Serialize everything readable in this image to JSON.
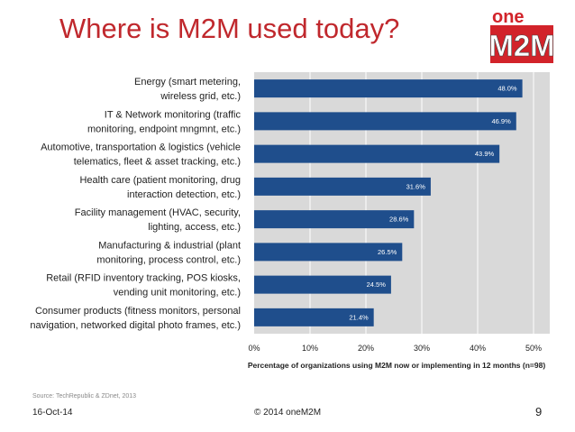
{
  "slide": {
    "title": "Where is M2M used today?",
    "logo_text_top": "one",
    "logo_text_main": "M2M",
    "source": "Source: TechRepublic & ZDnet, 2013",
    "date": "16-Oct-14",
    "copyright": "© 2014 oneM2M",
    "page_number": "9"
  },
  "colors": {
    "title": "#c0282d",
    "bar": "#1f4e8c",
    "plot_bg": "#d9d9d9",
    "logo_red": "#d2232a"
  },
  "chart_data": {
    "type": "bar",
    "orientation": "horizontal",
    "categories": [
      [
        "Energy (smart metering,",
        "wireless grid, etc.)"
      ],
      [
        "IT & Network monitoring (traffic",
        "monitoring, endpoint mngmnt, etc.)"
      ],
      [
        "Automotive, transportation & logistics (vehicle",
        "telematics, fleet & asset tracking, etc.)"
      ],
      [
        "Health care (patient monitoring, drug",
        "interaction detection, etc.)"
      ],
      [
        "Facility management (HVAC, security,",
        "lighting, access, etc.)"
      ],
      [
        "Manufacturing & industrial (plant",
        "monitoring, process control, etc.)"
      ],
      [
        "Retail (RFID inventory tracking, POS kiosks,",
        "vending unit monitoring, etc.)"
      ],
      [
        "Consumer products (fitness monitors, personal",
        "navigation, networked digital photo frames, etc.)"
      ]
    ],
    "values": [
      48.0,
      46.9,
      43.9,
      31.6,
      28.6,
      26.5,
      24.5,
      21.4
    ],
    "data_labels": [
      "48.0%",
      "46.9%",
      "43.9%",
      "31.6%",
      "28.6%",
      "26.5%",
      "24.5%",
      "21.4%"
    ],
    "xlabel": "Percentage of organizations using M2M now or implementing in 12 months (n=98)",
    "xlim": [
      0,
      50
    ],
    "xticks": [
      0,
      10,
      20,
      30,
      40,
      50
    ],
    "xtick_labels": [
      "0%",
      "10%",
      "20%",
      "30%",
      "40%",
      "50%"
    ],
    "grid": true
  }
}
